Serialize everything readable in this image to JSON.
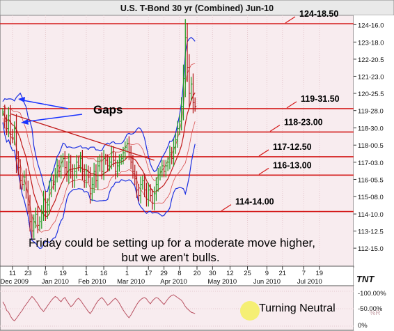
{
  "chart_data": [
    {
      "type": "candlestick",
      "title": "U.S. T-Bond 30 yr (Combined) Jun-10",
      "y_axis_position": "right",
      "ylim": [
        111.5,
        125.0
      ],
      "y_ticks": [
        "124-16.0",
        "123-18.0",
        "122-20.5",
        "121-23.0",
        "120-25.5",
        "119-28.0",
        "118-30.0",
        "118-00.5",
        "117-03.0",
        "116-05.5",
        "115-08.0",
        "114-10.0",
        "113-12.5",
        "112-15.0"
      ],
      "y_tick_values": [
        124.5,
        123.5625,
        122.64,
        121.72,
        120.8,
        119.875,
        118.94,
        118.016,
        117.094,
        116.17,
        115.25,
        114.31,
        113.39,
        112.47
      ],
      "x_tick_labels": [
        "11",
        "23",
        "6",
        "19",
        "1",
        "16",
        "1",
        "17",
        "29",
        "8",
        "20",
        "30",
        "12",
        "25",
        "9",
        "21",
        "7",
        "19"
      ],
      "x_tick_indices": [
        5,
        13,
        22,
        31,
        43,
        52,
        64,
        75,
        83,
        91,
        100,
        108,
        117,
        126,
        136,
        144,
        155,
        163
      ],
      "x_month_labels": [
        "Dec 2009",
        "Jan 2010",
        "Feb 2010",
        "Mar 2010",
        "Apr 2010",
        "May 2010",
        "Jun 2010",
        "Jul 2010"
      ],
      "x_month_indices": [
        6,
        27,
        46,
        66,
        88,
        113,
        136,
        158
      ],
      "horizontal_levels": [
        {
          "label": "124-18.50",
          "value": 124.55
        },
        {
          "label": "119-31.50",
          "value": 119.98
        },
        {
          "label": "118-23.00",
          "value": 118.72
        },
        {
          "label": "117-12.50",
          "value": 117.39
        },
        {
          "label": "116-13.00",
          "value": 116.4
        },
        {
          "label": "114-14.00",
          "value": 114.44
        }
      ],
      "trendline": {
        "from": {
          "i": 4,
          "y": 119.7
        },
        "to": {
          "i": 78,
          "y": 117.2
        }
      },
      "close": [
        119.8,
        119.3,
        118.9,
        119.6,
        118.6,
        118.4,
        118.9,
        117.3,
        116.8,
        116.1,
        115.9,
        116.3,
        115.6,
        114.8,
        113.9,
        113.4,
        113.9,
        114.3,
        113.7,
        113.9,
        114.4,
        115.1,
        114.4,
        114.8,
        115.6,
        116.1,
        115.9,
        116.4,
        116.9,
        116.6,
        117.1,
        117.3,
        116.8,
        116.4,
        117.1,
        116.6,
        116.1,
        116.6,
        117.1,
        116.9,
        117.3,
        116.6,
        116.1,
        116.6,
        116.3,
        115.4,
        115.9,
        116.6,
        116.1,
        116.9,
        117.2,
        116.6,
        117.3,
        117.2,
        116.9,
        117.1,
        117.6,
        117.2,
        116.6,
        116.9,
        117.2,
        117.3,
        117.6,
        117.9,
        118.1,
        117.6,
        117.1,
        116.6,
        116.2,
        115.6,
        115.3,
        115.9,
        116.1,
        115.6,
        115.1,
        115.6,
        115.3,
        114.9,
        115.4,
        115.9,
        116.4,
        116.6,
        116.9,
        116.6,
        116.9,
        117.1,
        117.6,
        117.3,
        117.9,
        118.3,
        118.9,
        119.3,
        120.1,
        121.6,
        123.8,
        122.2,
        120.8,
        121.3,
        120.3,
        120.1
      ],
      "annotations": [
        {
          "text": "Gaps"
        },
        {
          "text": "Friday could be setting up for a moderate move higher,"
        },
        {
          "text": "but we aren't bulls."
        }
      ]
    },
    {
      "type": "line",
      "indicator": "%R",
      "y_ticks": [
        "-100.00%",
        "-50.00%",
        "0%"
      ],
      "ylim": [
        -100,
        0
      ],
      "values": [
        -30,
        -40,
        -55,
        -60,
        -72,
        -80,
        -85,
        -78,
        -70,
        -62,
        -55,
        -45,
        -38,
        -30,
        -22,
        -15,
        -20,
        -28,
        -35,
        -45,
        -52,
        -58,
        -50,
        -42,
        -34,
        -26,
        -20,
        -15,
        -18,
        -25,
        -30,
        -22,
        -18,
        -28,
        -36,
        -44,
        -40,
        -32,
        -24,
        -20,
        -26,
        -34,
        -42,
        -50,
        -58,
        -64,
        -56,
        -46,
        -36,
        -28,
        -22,
        -18,
        -24,
        -32,
        -40,
        -36,
        -30,
        -24,
        -20,
        -26,
        -34,
        -44,
        -54,
        -62,
        -70,
        -76,
        -68,
        -58,
        -48,
        -38,
        -30,
        -24,
        -20,
        -18,
        -22,
        -30,
        -36,
        -28,
        -22,
        -18,
        -20,
        -26,
        -32,
        -38,
        -30,
        -22,
        -16,
        -12,
        -10,
        -14,
        -18,
        -22,
        -26,
        -34,
        -44,
        -50,
        -55,
        -60,
        -62,
        -64
      ],
      "annotation": "Turning Neutral",
      "label": "%R"
    }
  ]
}
